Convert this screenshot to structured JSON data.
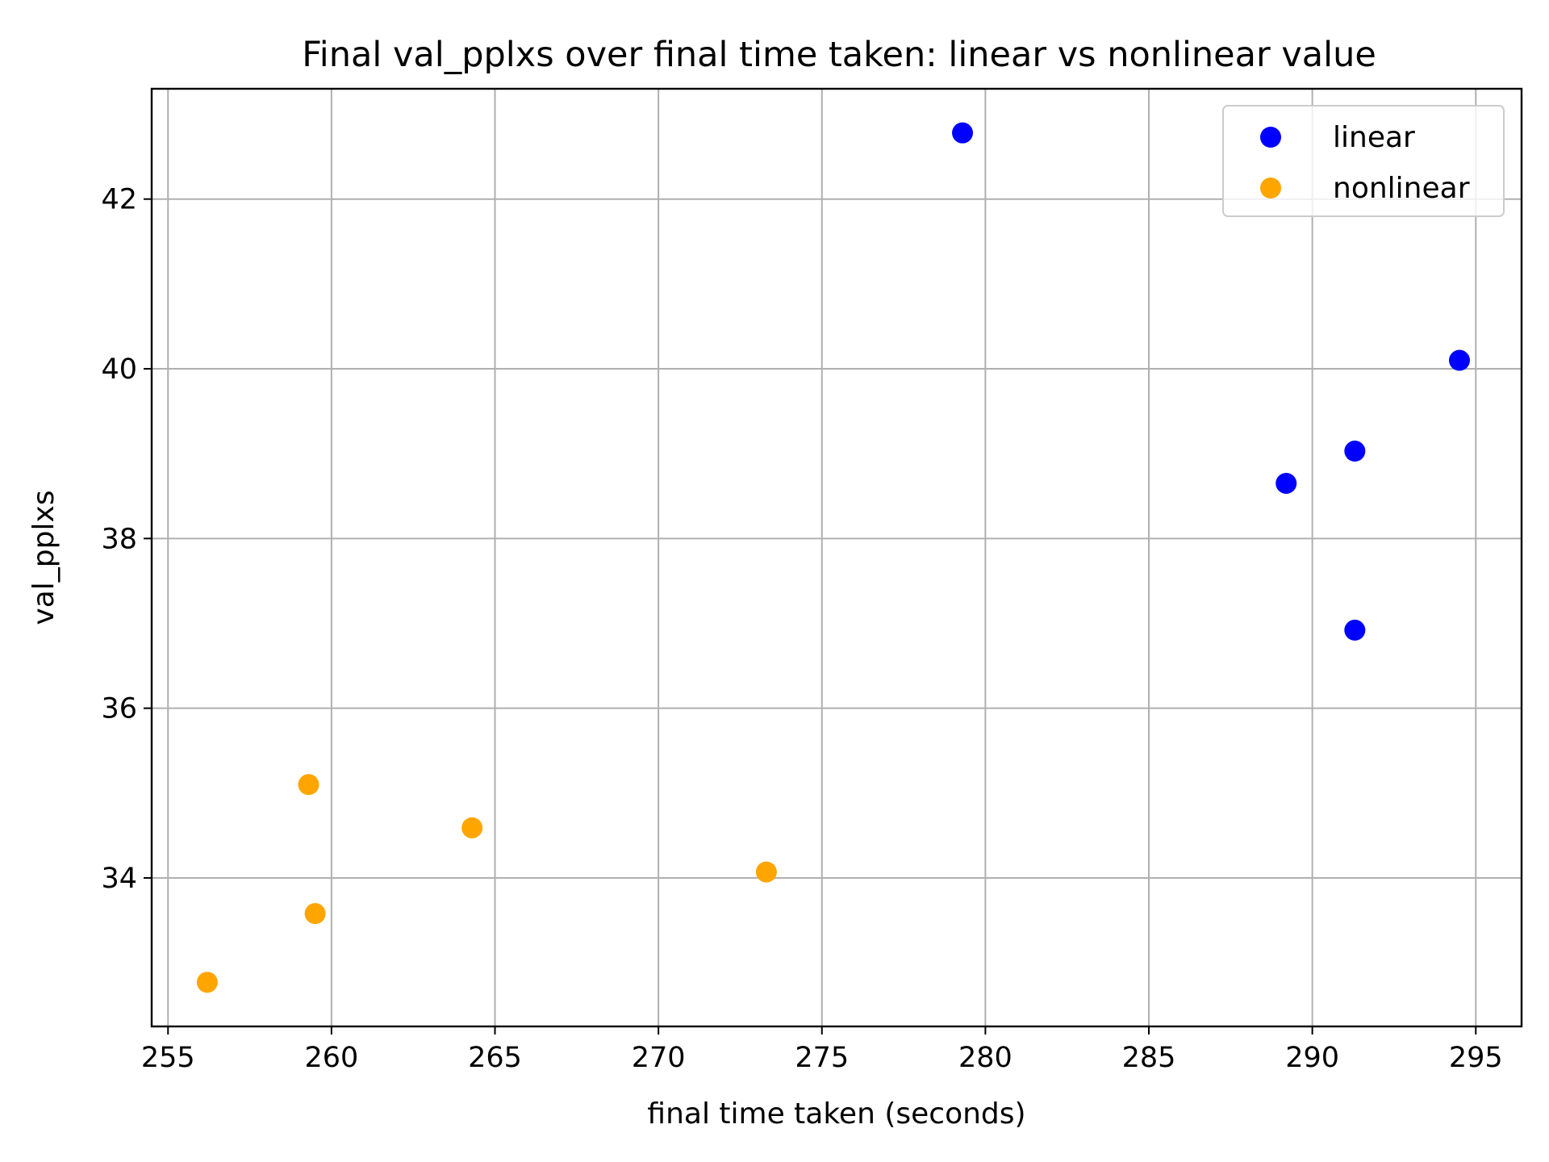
{
  "chart_data": {
    "type": "scatter",
    "title": "Final val_pplxs over final time taken: linear vs nonlinear value",
    "xlabel": "final time taken (seconds)",
    "ylabel": "val_pplxs",
    "xlim": [
      254.5,
      296.4
    ],
    "ylim": [
      32.25,
      43.3
    ],
    "xticks": [
      255,
      260,
      265,
      270,
      275,
      280,
      285,
      290,
      295
    ],
    "yticks": [
      34,
      36,
      38,
      40,
      42
    ],
    "grid": true,
    "legend_position": "top-right",
    "series": [
      {
        "name": "linear",
        "color": "#0000ff",
        "points": [
          {
            "x": 279.3,
            "y": 42.78
          },
          {
            "x": 294.5,
            "y": 40.1
          },
          {
            "x": 291.3,
            "y": 39.03
          },
          {
            "x": 289.2,
            "y": 38.65
          },
          {
            "x": 291.3,
            "y": 36.92
          }
        ]
      },
      {
        "name": "nonlinear",
        "color": "#ffa500",
        "points": [
          {
            "x": 259.3,
            "y": 35.1
          },
          {
            "x": 264.3,
            "y": 34.59
          },
          {
            "x": 273.3,
            "y": 34.07
          },
          {
            "x": 259.5,
            "y": 33.58
          },
          {
            "x": 256.2,
            "y": 32.77
          }
        ]
      }
    ]
  }
}
